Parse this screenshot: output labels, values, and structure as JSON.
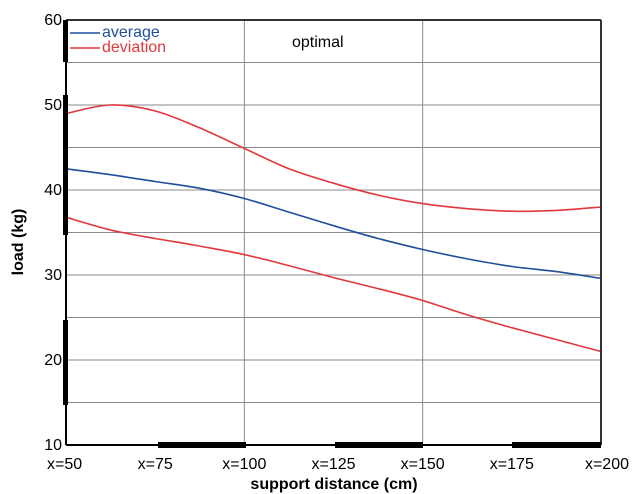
{
  "chart_data": {
    "type": "line",
    "xlabel": "support distance (cm)",
    "ylabel": "load (kg)",
    "x_ticks": [
      "x=50",
      "x=75",
      "x=100",
      "x=125",
      "x=150",
      "x=175",
      "x=200"
    ],
    "y_ticks": [
      "10",
      "20",
      "30",
      "40",
      "50",
      "60"
    ],
    "xlim": [
      50,
      200
    ],
    "ylim": [
      10,
      60
    ],
    "grid": true,
    "legend_position": "top-left",
    "annotation": "optimal",
    "series": [
      {
        "name": "average",
        "color": "#1f4e9c",
        "x": [
          50,
          62.5,
          75,
          87.5,
          100,
          112.5,
          125,
          137.5,
          150,
          162.5,
          175,
          187.5,
          200
        ],
        "y": [
          42.5,
          41.8,
          41.0,
          40.2,
          39.0,
          37.4,
          35.8,
          34.3,
          33.0,
          31.9,
          31.0,
          30.4,
          29.6
        ]
      },
      {
        "name": "deviation",
        "color": "#e0383b",
        "x": [
          50,
          62.5,
          75,
          87.5,
          100,
          112.5,
          125,
          137.5,
          150,
          162.5,
          175,
          187.5,
          200
        ],
        "y": [
          49.0,
          50.0,
          49.3,
          47.3,
          44.9,
          42.5,
          40.8,
          39.4,
          38.4,
          37.8,
          37.5,
          37.6,
          38.0
        ]
      },
      {
        "name": "deviation",
        "color": "#e0383b",
        "x": [
          50,
          62.5,
          75,
          87.5,
          100,
          112.5,
          125,
          137.5,
          150,
          162.5,
          175,
          187.5,
          200
        ],
        "y": [
          36.8,
          35.3,
          34.3,
          33.4,
          32.4,
          31.1,
          29.7,
          28.4,
          27.0,
          25.3,
          23.8,
          22.4,
          21.0
        ]
      }
    ]
  }
}
